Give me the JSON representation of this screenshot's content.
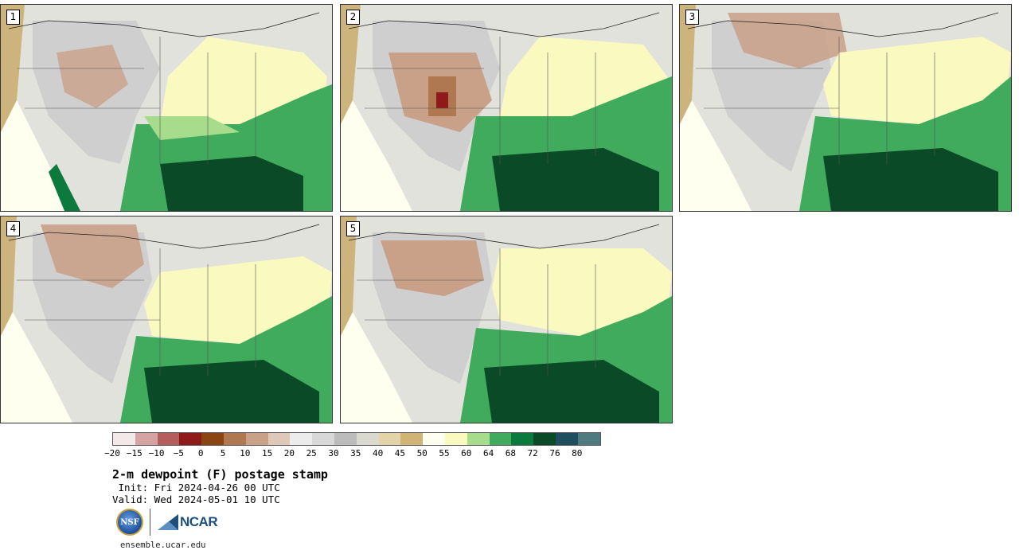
{
  "panels": [
    {
      "label": "1"
    },
    {
      "label": "2"
    },
    {
      "label": "3"
    },
    {
      "label": "4"
    },
    {
      "label": "5"
    }
  ],
  "colorbar": {
    "colors": [
      "#f4e9e9",
      "#d6a3a3",
      "#b45e5e",
      "#8e1a1a",
      "#8b4513",
      "#b07850",
      "#c9a088",
      "#e0c8b8",
      "#ececec",
      "#d8d8d8",
      "#bcbcbc",
      "#d9d9cf",
      "#e3d3a8",
      "#cfb476",
      "#fffff0",
      "#fafac0",
      "#a6dc8c",
      "#41ab5d",
      "#0c7a3c",
      "#0a4a26",
      "#1f4f5f",
      "#4f7a80"
    ],
    "tick_labels": [
      "−20",
      "−15",
      "−10",
      "−5",
      "0",
      "5",
      "10",
      "15",
      "20",
      "25",
      "30",
      "35",
      "40",
      "45",
      "50",
      "55",
      "60",
      "64",
      "68",
      "72",
      "76",
      "80"
    ]
  },
  "title": "2-m dewpoint (F) postage stamp",
  "init_line": " Init: Fri 2024-04-26 00 UTC",
  "valid_line": "Valid: Wed 2024-05-01 10 UTC",
  "logos": {
    "nsf_text": "NSF",
    "ncar_text": "NCAR"
  },
  "footer_url": "ensemble.ucar.edu"
}
